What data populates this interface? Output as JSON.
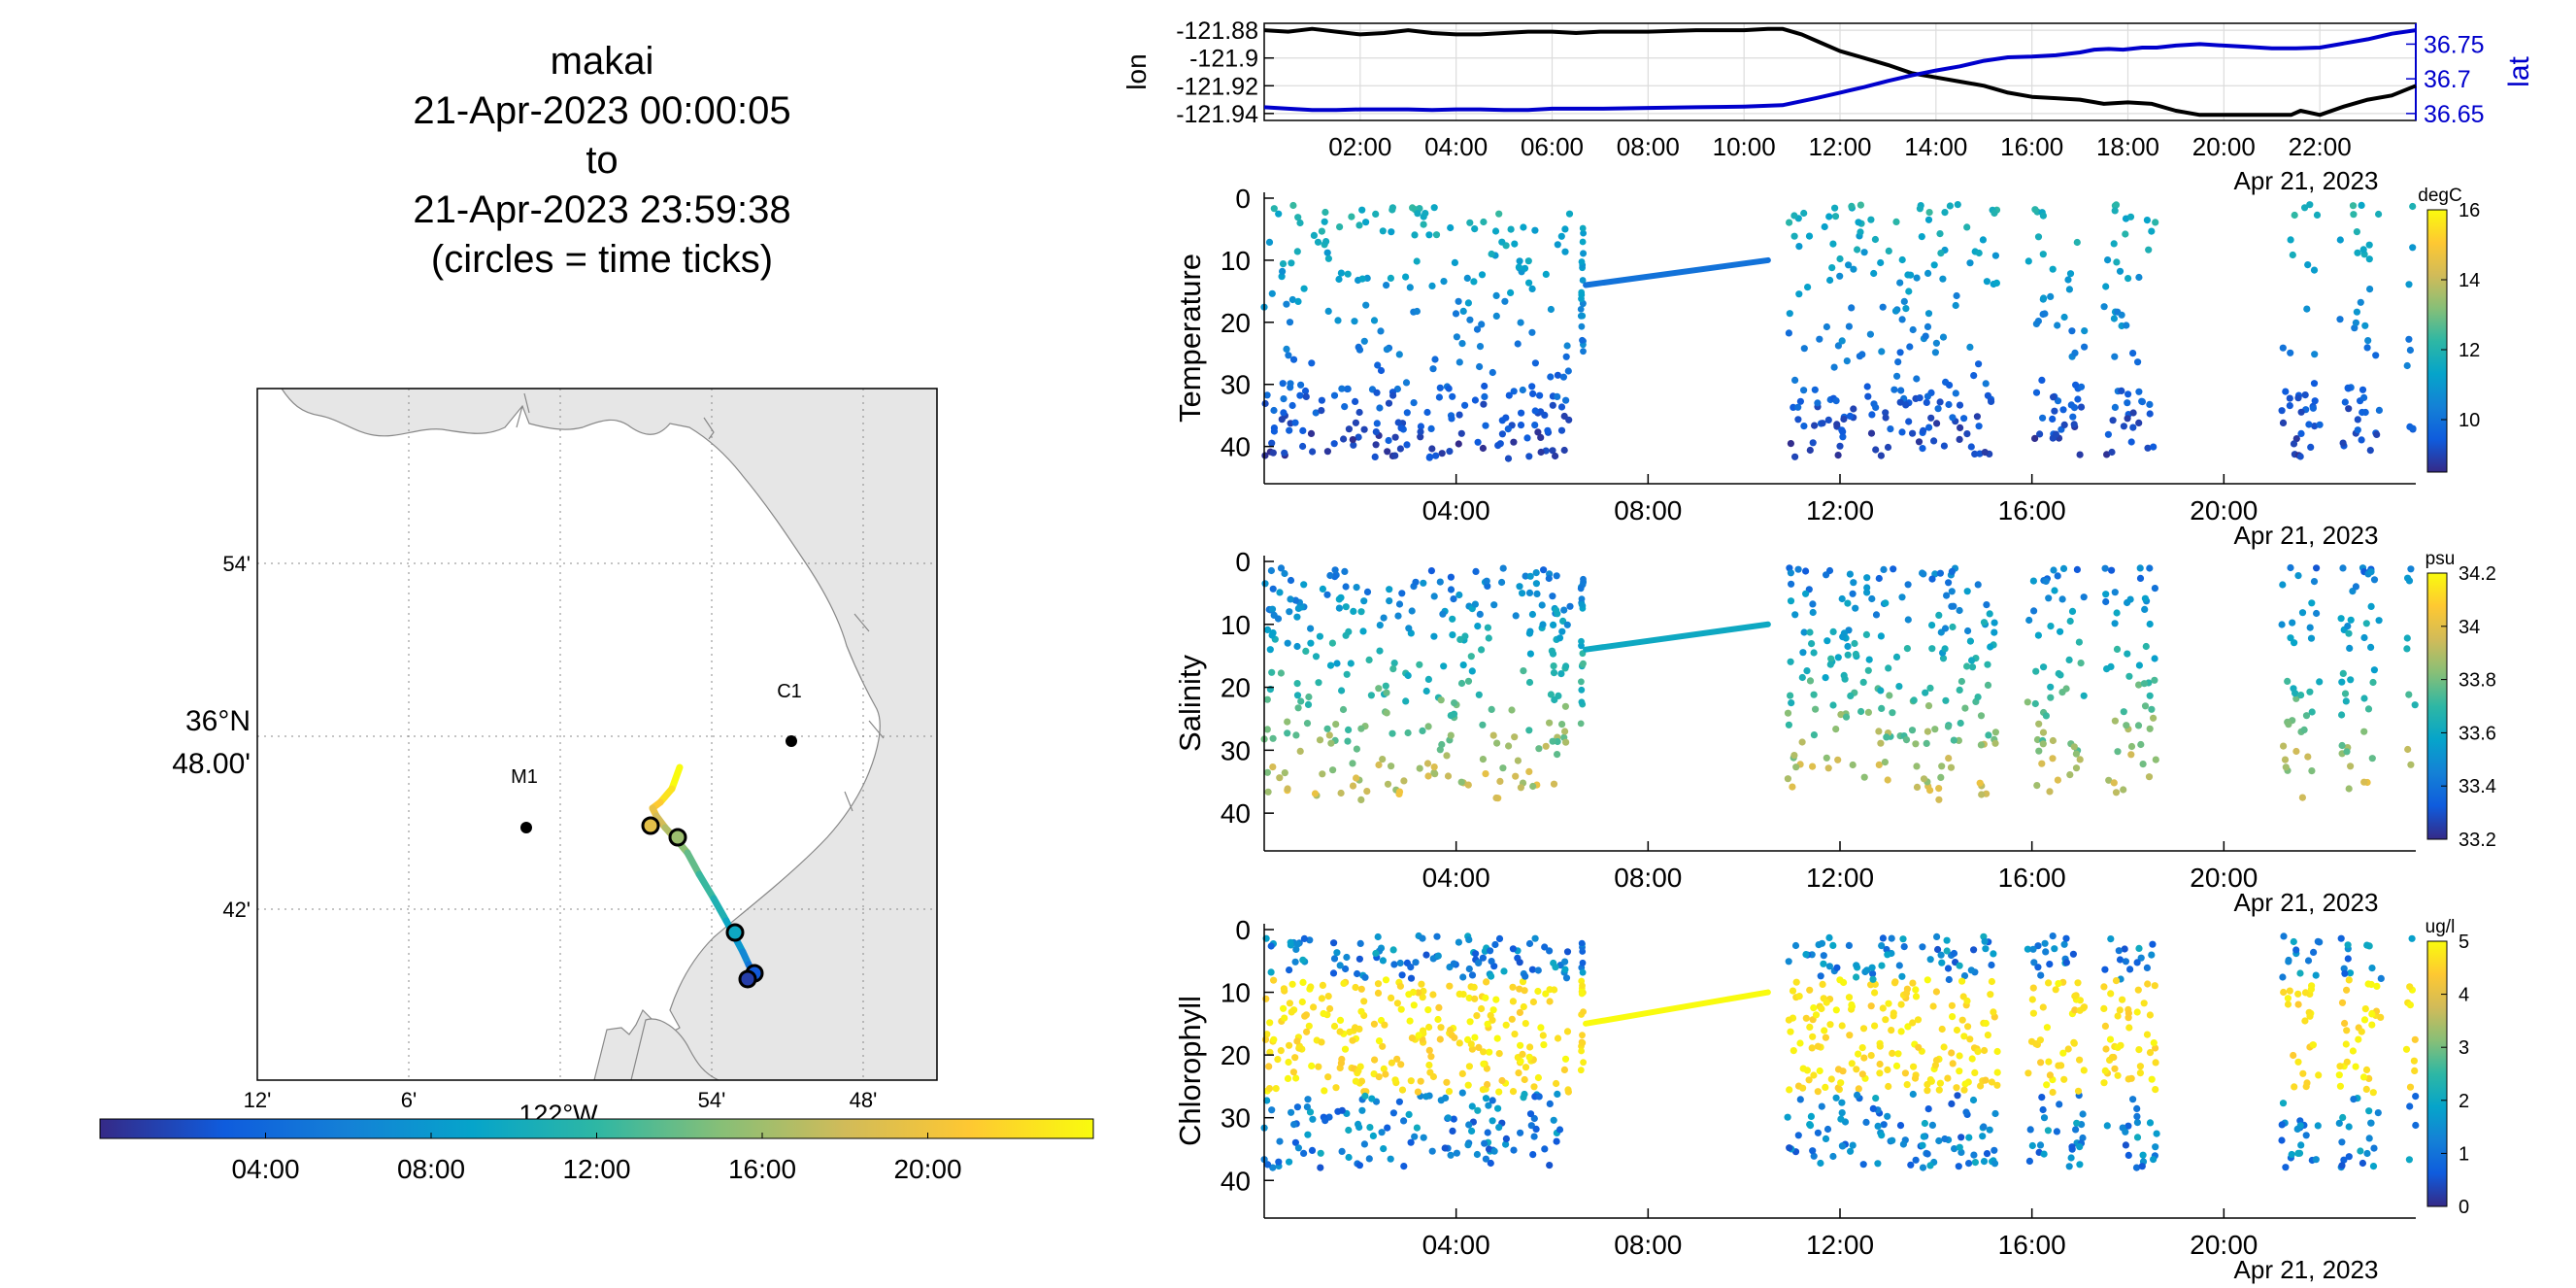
{
  "title": {
    "lines": [
      "makai",
      "21-Apr-2023 00:00:05",
      "to",
      "21-Apr-2023 23:59:38",
      "(circles = time ticks)"
    ]
  },
  "colors": {
    "land": "#e6e6e6",
    "lon_line": "#000000",
    "lat_line": "#0000cc",
    "parula": [
      "#352a87",
      "#0f5cdd",
      "#1481d6",
      "#06a4ca",
      "#2eb7a4",
      "#87bf77",
      "#d1bb59",
      "#fec832",
      "#f9fb0e"
    ]
  },
  "chart_data": [
    {
      "type": "line",
      "id": "track-panel",
      "xlabel": "",
      "x_ticks": [
        "02:00",
        "04:00",
        "06:00",
        "08:00",
        "10:00",
        "12:00",
        "14:00",
        "16:00",
        "18:00",
        "20:00",
        "22:00"
      ],
      "date_label": "Apr 21, 2023",
      "xlim": [
        0,
        24
      ],
      "left_axis": {
        "label": "lon",
        "ticks": [
          "-121.88",
          "-121.9",
          "-121.92",
          "-121.94"
        ],
        "ylim": [
          -121.945,
          -121.875
        ]
      },
      "right_axis": {
        "label": "lat",
        "ticks": [
          "36.75",
          "36.7",
          "36.65"
        ],
        "ylim": [
          36.64,
          36.78
        ]
      },
      "series": [
        {
          "name": "lon",
          "axis": "left",
          "x": [
            0,
            0.5,
            1.0,
            1.5,
            2.0,
            2.5,
            3.0,
            3.5,
            4.0,
            4.5,
            5.0,
            5.5,
            6.0,
            6.5,
            7.0,
            7.5,
            8.0,
            8.5,
            9.0,
            9.5,
            10.0,
            10.5,
            10.8,
            11.2,
            11.6,
            12.0,
            12.5,
            13.0,
            13.5,
            14.0,
            14.5,
            15.0,
            15.5,
            16.0,
            16.5,
            17.0,
            17.5,
            18.0,
            18.5,
            19.0,
            19.5,
            20.0,
            20.5,
            21.0,
            21.2,
            21.4,
            21.6,
            22.0,
            22.5,
            23.0,
            23.5,
            24.0
          ],
          "y": [
            -121.88,
            -121.881,
            -121.879,
            -121.881,
            -121.883,
            -121.882,
            -121.88,
            -121.882,
            -121.883,
            -121.883,
            -121.882,
            -121.881,
            -121.881,
            -121.882,
            -121.881,
            -121.881,
            -121.881,
            -121.8805,
            -121.88,
            -121.88,
            -121.88,
            -121.879,
            -121.879,
            -121.883,
            -121.889,
            -121.895,
            -121.9,
            -121.905,
            -121.911,
            -121.914,
            -121.917,
            -121.92,
            -121.925,
            -121.928,
            -121.929,
            -121.93,
            -121.933,
            -121.932,
            -121.933,
            -121.938,
            -121.941,
            -121.941,
            -121.941,
            -121.941,
            -121.941,
            -121.941,
            -121.938,
            -121.941,
            -121.935,
            -121.93,
            -121.927,
            -121.92
          ]
        },
        {
          "name": "lat",
          "axis": "right",
          "x": [
            0,
            0.5,
            1.0,
            1.5,
            2.0,
            2.5,
            3.0,
            3.5,
            4.0,
            4.5,
            5.0,
            5.5,
            6.0,
            6.5,
            7.0,
            8.0,
            9.0,
            10.0,
            10.8,
            11.5,
            12.0,
            12.5,
            13.0,
            13.5,
            14.0,
            14.5,
            15.0,
            15.5,
            16.0,
            16.5,
            17.0,
            17.3,
            17.6,
            17.9,
            18.3,
            18.6,
            19.0,
            19.5,
            20.0,
            20.5,
            21.0,
            21.5,
            22.0,
            22.5,
            23.0,
            23.5,
            24.0
          ],
          "y": [
            36.659,
            36.657,
            36.655,
            36.655,
            36.656,
            36.656,
            36.656,
            36.655,
            36.656,
            36.656,
            36.655,
            36.655,
            36.657,
            36.657,
            36.657,
            36.658,
            36.659,
            36.66,
            36.662,
            36.672,
            36.68,
            36.688,
            36.697,
            36.705,
            36.712,
            36.718,
            36.726,
            36.731,
            36.732,
            36.734,
            36.738,
            36.742,
            36.743,
            36.742,
            36.745,
            36.745,
            36.748,
            36.75,
            36.748,
            36.746,
            36.744,
            36.744,
            36.745,
            36.751,
            36.757,
            36.765,
            36.77
          ]
        }
      ]
    },
    {
      "type": "scatter",
      "id": "temperature-panel",
      "ylabel": "Temperature",
      "y_ticks": [
        "0",
        "10",
        "20",
        "30",
        "40"
      ],
      "ylim": [
        0,
        46
      ],
      "y_reversed": true,
      "x_ticks": [
        "04:00",
        "08:00",
        "12:00",
        "16:00",
        "20:00"
      ],
      "xlim": [
        0,
        24
      ],
      "date_label": "Apr 21, 2023",
      "colorbar": {
        "unit": "degC",
        "ticks": [
          "16",
          "14",
          "12",
          "10"
        ],
        "clim": [
          8.5,
          16
        ]
      },
      "surface_value": 12,
      "deep_value": 9,
      "transit_value": 10,
      "yo_segments": [
        [
          0,
          6.4
        ],
        [
          10.9,
          12.0
        ],
        [
          12.0,
          15.3
        ],
        [
          15.9,
          17.1
        ],
        [
          17.5,
          18.6
        ],
        [
          21.2,
          22.0
        ],
        [
          22.4,
          23.3
        ],
        [
          23.8,
          24.0
        ]
      ],
      "transit": {
        "from": [
          6.7,
          14
        ],
        "to": [
          10.5,
          10
        ]
      }
    },
    {
      "type": "scatter",
      "id": "salinity-panel",
      "ylabel": "Salinity",
      "y_ticks": [
        "0",
        "10",
        "20",
        "30",
        "40"
      ],
      "ylim": [
        0,
        46
      ],
      "y_reversed": true,
      "x_ticks": [
        "04:00",
        "08:00",
        "12:00",
        "16:00",
        "20:00"
      ],
      "xlim": [
        0,
        24
      ],
      "date_label": "Apr 21, 2023",
      "colorbar": {
        "unit": "psu",
        "ticks": [
          "34.2",
          "34",
          "33.8",
          "33.6",
          "33.4",
          "33.2"
        ],
        "clim": [
          33.2,
          34.2
        ]
      },
      "surface_value": 33.4,
      "deep_value": 34.0,
      "transit_value": 33.6,
      "yo_segments": [
        [
          0,
          6.4
        ],
        [
          10.9,
          12.0
        ],
        [
          12.0,
          15.3
        ],
        [
          15.9,
          17.1
        ],
        [
          17.5,
          18.6
        ],
        [
          21.2,
          22.0
        ],
        [
          22.4,
          23.3
        ],
        [
          23.8,
          24.0
        ]
      ],
      "transit": {
        "from": [
          6.7,
          14
        ],
        "to": [
          10.5,
          10
        ]
      }
    },
    {
      "type": "scatter",
      "id": "chlorophyll-panel",
      "ylabel": "Chlorophyll",
      "y_ticks": [
        "0",
        "10",
        "20",
        "30",
        "40"
      ],
      "ylim": [
        0,
        46
      ],
      "y_reversed": true,
      "x_ticks": [
        "04:00",
        "08:00",
        "12:00",
        "16:00",
        "20:00"
      ],
      "xlim": [
        0,
        24
      ],
      "date_label": "Apr 21, 2023",
      "colorbar": {
        "unit": "ug/l",
        "ticks": [
          "5",
          "4",
          "3",
          "2",
          "1",
          "0"
        ],
        "clim": [
          0,
          5
        ]
      },
      "surface_value": 1.5,
      "deep_value": 0.5,
      "transit_value": 5,
      "yo_segments": [
        [
          0,
          6.4
        ],
        [
          10.9,
          12.0
        ],
        [
          12.0,
          15.3
        ],
        [
          15.9,
          17.1
        ],
        [
          17.5,
          18.6
        ],
        [
          21.2,
          22.0
        ],
        [
          22.4,
          23.3
        ],
        [
          23.8,
          24.0
        ]
      ],
      "transit": {
        "from": [
          6.7,
          15
        ],
        "to": [
          10.5,
          10
        ]
      }
    },
    {
      "type": "line",
      "id": "map-panel",
      "x_ticks": [
        "12'",
        "6'",
        "54'",
        "48'"
      ],
      "x_center_label": "122°W",
      "y_ticks": [
        "54'",
        "42'"
      ],
      "y_center_label": [
        "36°N",
        "48.00'"
      ],
      "stations": [
        {
          "name": "C1"
        },
        {
          "name": "M1"
        }
      ],
      "colorbar": {
        "ticks": [
          "04:00",
          "08:00",
          "12:00",
          "16:00",
          "20:00"
        ],
        "clim": [
          0,
          24
        ]
      }
    }
  ]
}
